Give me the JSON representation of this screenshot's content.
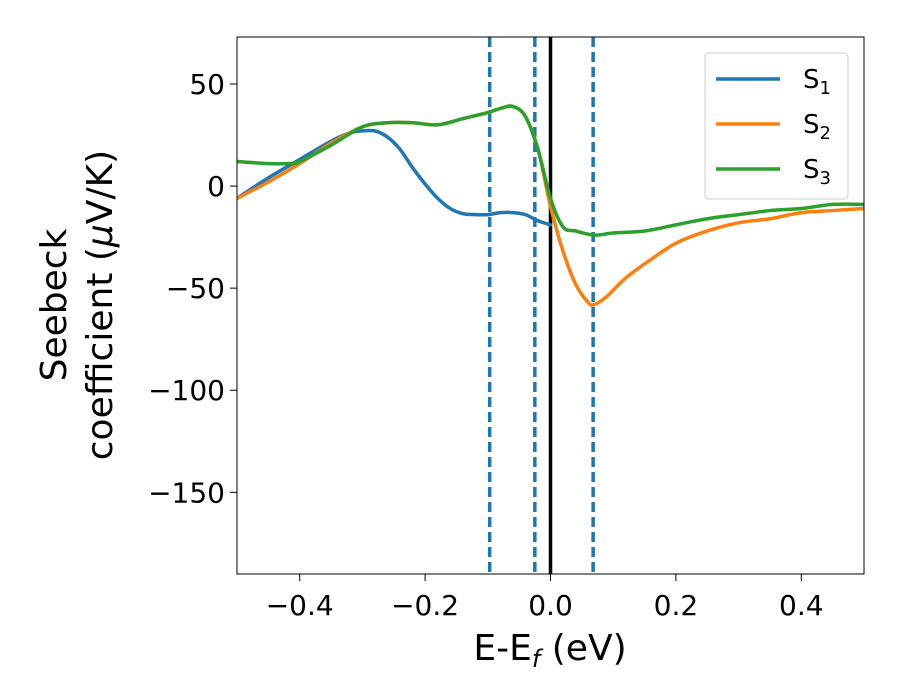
{
  "chart_data": {
    "type": "line",
    "xlabel": {
      "main": "E-E",
      "sub": "f",
      "suffix": " (eV)"
    },
    "ylabel": {
      "line1": "Seebeck",
      "line2_prefix": "coefficient  (",
      "line2_mu": "μ",
      "line2_suffix": "V/K)"
    },
    "xlim": [
      -0.5,
      0.5
    ],
    "ylim": [
      -190,
      73
    ],
    "xticks": [
      -0.4,
      -0.2,
      0.0,
      0.2,
      0.4
    ],
    "xtick_labels": [
      "−0.4",
      "−0.2",
      "0.0",
      "0.2",
      "0.4"
    ],
    "yticks": [
      50,
      0,
      -50,
      -100,
      -150
    ],
    "ytick_labels": [
      "50",
      "0",
      "−50",
      "−100",
      "−150"
    ],
    "grid": false,
    "legend_position": "top-right",
    "vlines": [
      {
        "x": -0.097,
        "style": "dashed",
        "color": "#1f77b4"
      },
      {
        "x": -0.025,
        "style": "dashed",
        "color": "#1f77b4"
      },
      {
        "x": 0.0,
        "style": "solid",
        "color": "#000000"
      },
      {
        "x": 0.068,
        "style": "dashed",
        "color": "#1f77b4"
      }
    ],
    "series": [
      {
        "name": "S1",
        "base": "S",
        "subscript": "1",
        "color": "#1f77b4",
        "x": [
          -0.5,
          -0.45,
          -0.4,
          -0.35,
          -0.32,
          -0.3,
          -0.28,
          -0.26,
          -0.24,
          -0.22,
          -0.2,
          -0.18,
          -0.16,
          -0.14,
          -0.12,
          -0.1,
          -0.08,
          -0.06,
          -0.04,
          -0.02,
          0.0
        ],
        "y": [
          -6,
          4,
          13,
          22,
          26,
          27,
          27,
          24,
          18,
          9,
          1,
          -6,
          -11,
          -13.5,
          -14,
          -14,
          -13,
          -13,
          -14,
          -17,
          -19
        ]
      },
      {
        "name": "S2",
        "base": "S",
        "subscript": "2",
        "color": "#ff7f0e",
        "x": [
          -0.5,
          -0.45,
          -0.4,
          -0.35,
          -0.3,
          -0.26,
          -0.22,
          -0.18,
          -0.14,
          -0.1,
          -0.08,
          -0.06,
          -0.04,
          -0.02,
          0.0,
          0.02,
          0.04,
          0.06,
          0.07,
          0.09,
          0.12,
          0.16,
          0.2,
          0.25,
          0.3,
          0.35,
          0.4,
          0.45,
          0.5
        ],
        "y": [
          -6,
          2,
          11,
          21,
          29,
          31,
          31,
          30,
          33,
          36,
          38,
          39,
          34,
          18,
          -10,
          -32,
          -48,
          -57,
          -58,
          -54,
          -45,
          -36,
          -28,
          -22,
          -18,
          -16,
          -13,
          -12,
          -11
        ]
      },
      {
        "name": "S3",
        "base": "S",
        "subscript": "3",
        "color": "#2ca02c",
        "x": [
          -0.5,
          -0.45,
          -0.42,
          -0.4,
          -0.35,
          -0.3,
          -0.26,
          -0.22,
          -0.18,
          -0.14,
          -0.1,
          -0.08,
          -0.06,
          -0.04,
          -0.02,
          0.0,
          0.02,
          0.04,
          0.07,
          0.1,
          0.15,
          0.2,
          0.25,
          0.3,
          0.35,
          0.4,
          0.45,
          0.5
        ],
        "y": [
          12,
          11,
          11,
          12,
          20,
          29,
          31,
          31,
          30,
          33,
          36,
          38,
          39,
          34,
          18,
          -6,
          -20,
          -22,
          -24,
          -23,
          -22,
          -19,
          -16,
          -14,
          -12,
          -11,
          -9,
          -9
        ]
      }
    ]
  }
}
